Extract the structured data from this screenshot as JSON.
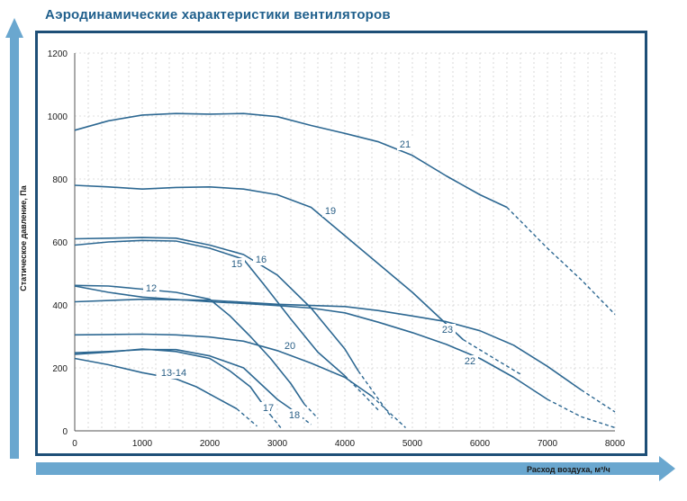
{
  "header": {
    "title": "Аэродинамические характеристики вентиляторов"
  },
  "chart_data": {
    "type": "line",
    "title": "Аэродинамические характеристики вентиляторов",
    "xlabel": "Расход воздуха, м³/ч",
    "ylabel": "Статическое давление, Па",
    "xlim": [
      0,
      8000
    ],
    "ylim": [
      0,
      1200
    ],
    "x_ticks": [
      "0",
      "1000",
      "2000",
      "3000",
      "4000",
      "5000",
      "6000",
      "7000",
      "8000"
    ],
    "y_ticks": [
      "0",
      "200",
      "400",
      "600",
      "800",
      "1000",
      "1200"
    ],
    "grid": true,
    "colors": {
      "curve": "#2d6892",
      "frame": "#1e4f77",
      "axis": "#6aa7cf",
      "grid": "#bfbfbf"
    },
    "series": [
      {
        "name": "21",
        "points": [
          [
            0,
            955
          ],
          [
            500,
            985
          ],
          [
            1000,
            1003
          ],
          [
            1500,
            1008
          ],
          [
            2000,
            1006
          ],
          [
            2500,
            1008
          ],
          [
            3000,
            998
          ],
          [
            3500,
            970
          ],
          [
            4000,
            945
          ],
          [
            4500,
            918
          ],
          [
            5000,
            875
          ],
          [
            5500,
            810
          ],
          [
            6000,
            750
          ],
          [
            6400,
            710
          ]
        ],
        "dashed": [
          [
            6400,
            710
          ],
          [
            7000,
            580
          ],
          [
            7500,
            480
          ],
          [
            8000,
            370
          ]
        ]
      },
      {
        "name": "19",
        "points": [
          [
            0,
            780
          ],
          [
            500,
            775
          ],
          [
            1000,
            768
          ],
          [
            1500,
            773
          ],
          [
            2000,
            775
          ],
          [
            2500,
            768
          ],
          [
            3000,
            750
          ],
          [
            3500,
            710
          ],
          [
            4000,
            620
          ],
          [
            4500,
            530
          ],
          [
            5000,
            440
          ],
          [
            5500,
            340
          ],
          [
            5750,
            290
          ]
        ],
        "dashed": [
          [
            5750,
            290
          ],
          [
            6250,
            225
          ],
          [
            6600,
            180
          ]
        ]
      },
      {
        "name": "23",
        "points": [
          [
            0,
            410
          ],
          [
            1000,
            418
          ],
          [
            2000,
            415
          ],
          [
            3000,
            402
          ],
          [
            4000,
            395
          ],
          [
            4500,
            382
          ],
          [
            5000,
            365
          ],
          [
            5500,
            347
          ],
          [
            6000,
            318
          ],
          [
            6500,
            272
          ],
          [
            7000,
            205
          ],
          [
            7500,
            130
          ]
        ],
        "dashed": [
          [
            7500,
            130
          ],
          [
            8000,
            60
          ]
        ]
      },
      {
        "name": "22",
        "points": [
          [
            0,
            460
          ],
          [
            500,
            440
          ],
          [
            1000,
            425
          ],
          [
            2000,
            410
          ],
          [
            2500,
            405
          ],
          [
            3000,
            398
          ],
          [
            3500,
            390
          ],
          [
            4000,
            375
          ],
          [
            4500,
            345
          ],
          [
            5000,
            312
          ],
          [
            5500,
            275
          ],
          [
            6000,
            230
          ],
          [
            6500,
            170
          ],
          [
            7000,
            100
          ]
        ],
        "dashed": [
          [
            7000,
            100
          ],
          [
            7500,
            45
          ],
          [
            8000,
            10
          ]
        ]
      },
      {
        "name": "16",
        "points": [
          [
            0,
            610
          ],
          [
            500,
            612
          ],
          [
            1000,
            614
          ],
          [
            1500,
            612
          ],
          [
            2000,
            590
          ],
          [
            2500,
            560
          ],
          [
            3000,
            495
          ],
          [
            3500,
            390
          ],
          [
            4000,
            260
          ],
          [
            4200,
            190
          ]
        ],
        "dashed": [
          [
            4200,
            190
          ],
          [
            4400,
            130
          ],
          [
            4700,
            40
          ]
        ]
      },
      {
        "name": "15",
        "points": [
          [
            0,
            590
          ],
          [
            500,
            600
          ],
          [
            1000,
            605
          ],
          [
            1500,
            603
          ],
          [
            2000,
            580
          ],
          [
            2500,
            545
          ],
          [
            2800,
            465
          ],
          [
            3200,
            355
          ],
          [
            3600,
            250
          ],
          [
            4000,
            175
          ]
        ],
        "dashed": [
          [
            4000,
            175
          ],
          [
            4300,
            110
          ],
          [
            4500,
            65
          ]
        ]
      },
      {
        "name": "12",
        "points": [
          [
            0,
            462
          ],
          [
            500,
            460
          ],
          [
            1000,
            450
          ],
          [
            1500,
            440
          ],
          [
            2000,
            418
          ],
          [
            2300,
            365
          ],
          [
            2600,
            300
          ],
          [
            2900,
            230
          ],
          [
            3200,
            150
          ],
          [
            3400,
            85
          ]
        ],
        "dashed": [
          [
            3400,
            85
          ],
          [
            3600,
            40
          ]
        ]
      },
      {
        "name": "20",
        "points": [
          [
            0,
            305
          ],
          [
            500,
            306
          ],
          [
            1000,
            307
          ],
          [
            1500,
            305
          ],
          [
            2000,
            298
          ],
          [
            2500,
            285
          ],
          [
            3000,
            255
          ],
          [
            3500,
            215
          ],
          [
            4000,
            170
          ],
          [
            4400,
            110
          ]
        ],
        "dashed": [
          [
            4400,
            110
          ],
          [
            4600,
            70
          ],
          [
            4900,
            10
          ]
        ]
      },
      {
        "name": "18",
        "points": [
          [
            0,
            248
          ],
          [
            500,
            252
          ],
          [
            1000,
            258
          ],
          [
            1500,
            258
          ],
          [
            2000,
            238
          ],
          [
            2500,
            200
          ],
          [
            2800,
            140
          ],
          [
            3000,
            100
          ],
          [
            3200,
            70
          ]
        ],
        "dashed": [
          [
            3200,
            70
          ],
          [
            3500,
            20
          ]
        ]
      },
      {
        "name": "17",
        "points": [
          [
            0,
            243
          ],
          [
            500,
            250
          ],
          [
            1000,
            260
          ],
          [
            1500,
            252
          ],
          [
            2000,
            230
          ],
          [
            2300,
            190
          ],
          [
            2600,
            140
          ],
          [
            2800,
            80
          ],
          [
            2900,
            50
          ]
        ],
        "dashed": [
          [
            2900,
            50
          ],
          [
            3050,
            10
          ]
        ]
      },
      {
        "name": "13-14",
        "points": [
          [
            0,
            230
          ],
          [
            500,
            210
          ],
          [
            1000,
            185
          ],
          [
            1500,
            165
          ],
          [
            1800,
            140
          ],
          [
            2100,
            105
          ],
          [
            2400,
            70
          ]
        ],
        "dashed": [
          [
            2400,
            70
          ],
          [
            2700,
            15
          ]
        ]
      }
    ]
  }
}
